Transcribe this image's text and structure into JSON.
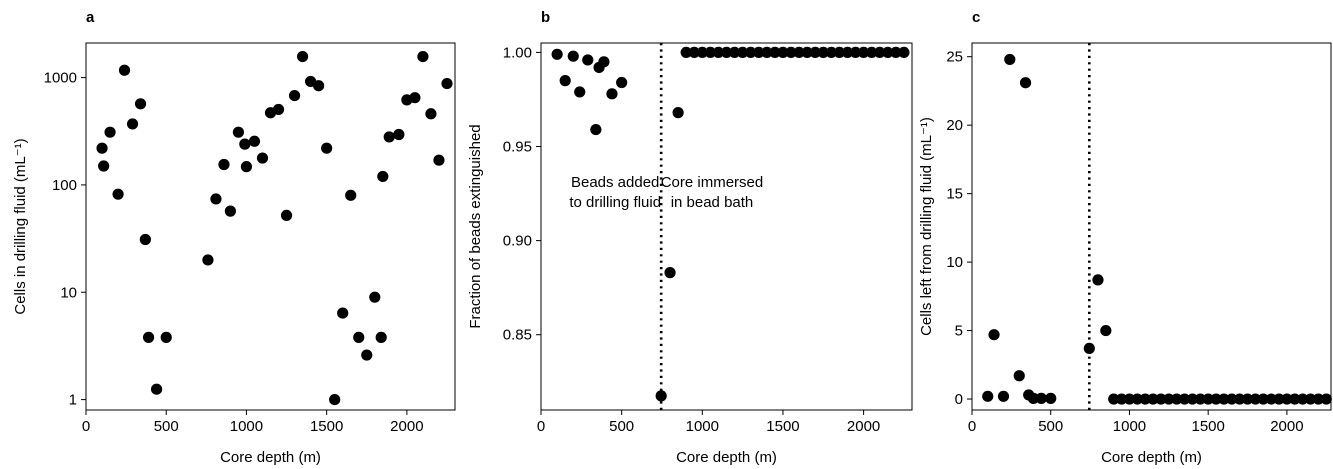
{
  "chart_data": [
    {
      "type": "scatter",
      "panel_label": "a",
      "xlabel": "Core depth (m)",
      "ylabel": "Cells in drilling fluid (mL⁻¹)",
      "xlim": [
        0,
        2300
      ],
      "ylim": [
        0.8,
        2100
      ],
      "y_scale": "log",
      "x_ticks": [
        0,
        500,
        1000,
        1500,
        2000
      ],
      "y_ticks": [
        1,
        10,
        100,
        1000
      ],
      "grid": false,
      "series": [
        {
          "x": [
            100,
            110,
            150,
            200,
            240,
            290,
            340,
            370,
            390,
            440,
            500,
            760,
            810,
            860,
            900,
            950,
            990,
            1000,
            1050,
            1100,
            1150,
            1200,
            1250,
            1300,
            1350,
            1400,
            1450,
            1500,
            1550,
            1600,
            1650,
            1700,
            1750,
            1800,
            1840,
            1850,
            1890,
            1950,
            2000,
            2050,
            2100,
            2150,
            2200,
            2250
          ],
          "y": [
            220,
            150,
            310,
            82,
            1170,
            370,
            570,
            31,
            3.8,
            1.25,
            3.8,
            20,
            74,
            155,
            57,
            310,
            240,
            148,
            255,
            178,
            470,
            505,
            52,
            680,
            1570,
            920,
            840,
            220,
            1.0,
            6.4,
            80,
            3.8,
            2.6,
            9,
            3.8,
            120,
            280,
            295,
            620,
            650,
            1570,
            460,
            170,
            880
          ]
        }
      ]
    },
    {
      "type": "scatter",
      "panel_label": "b",
      "xlabel": "Core depth (m)",
      "ylabel": "Fraction of beads extinguished",
      "xlim": [
        0,
        2300
      ],
      "ylim": [
        0.81,
        1.005
      ],
      "x_ticks": [
        0,
        500,
        1000,
        1500,
        2000
      ],
      "y_ticks": [
        0.85,
        0.9,
        0.95,
        1.0
      ],
      "y_tick_labels": [
        "0.85",
        "0.90",
        "0.95",
        "1.00"
      ],
      "grid": false,
      "vline_x": 745,
      "annotations": [
        {
          "lines": [
            "Beads added",
            "to drilling fluid"
          ],
          "x": 460,
          "y": 0.9285,
          "anchor": "middle"
        },
        {
          "lines": [
            "Core immersed",
            "in bead bath"
          ],
          "x": 1060,
          "y": 0.9285,
          "anchor": "middle"
        }
      ],
      "series": [
        {
          "x": [
            100,
            150,
            200,
            240,
            290,
            340,
            360,
            390,
            440,
            500,
            745,
            800,
            850,
            900,
            950,
            1000,
            1050,
            1100,
            1150,
            1200,
            1250,
            1300,
            1350,
            1400,
            1450,
            1500,
            1550,
            1600,
            1650,
            1700,
            1750,
            1800,
            1850,
            1900,
            1950,
            2000,
            2050,
            2100,
            2150,
            2200,
            2250
          ],
          "y": [
            0.999,
            0.985,
            0.998,
            0.979,
            0.996,
            0.959,
            0.992,
            0.995,
            0.978,
            0.984,
            0.8175,
            0.883,
            0.968,
            1.0,
            1.0,
            1.0,
            1.0,
            1.0,
            1.0,
            1.0,
            1.0,
            1.0,
            1.0,
            1.0,
            1.0,
            1.0,
            1.0,
            1.0,
            1.0,
            1.0,
            1.0,
            1.0,
            1.0,
            1.0,
            1.0,
            1.0,
            1.0,
            1.0,
            1.0,
            1.0,
            1.0
          ]
        }
      ]
    },
    {
      "type": "scatter",
      "panel_label": "c",
      "xlabel": "Core depth (m)",
      "ylabel": "Cells left from drilling fluid (mL⁻¹)",
      "xlim": [
        0,
        2280
      ],
      "ylim": [
        -0.8,
        26
      ],
      "x_ticks": [
        0,
        500,
        1000,
        1500,
        2000
      ],
      "y_ticks": [
        0,
        5,
        10,
        15,
        20,
        25
      ],
      "grid": false,
      "vline_x": 745,
      "series": [
        {
          "x": [
            100,
            140,
            200,
            240,
            300,
            340,
            360,
            390,
            440,
            500,
            745,
            800,
            850,
            900,
            950,
            1000,
            1050,
            1100,
            1150,
            1200,
            1250,
            1300,
            1350,
            1400,
            1450,
            1500,
            1550,
            1600,
            1650,
            1700,
            1750,
            1800,
            1850,
            1900,
            1950,
            2000,
            2050,
            2100,
            2150,
            2200,
            2250
          ],
          "y": [
            0.2,
            4.7,
            0.2,
            24.8,
            1.7,
            23.1,
            0.3,
            0.05,
            0.05,
            0.05,
            3.7,
            8.7,
            5.0,
            0.0,
            0.0,
            0.0,
            0.0,
            0.0,
            0.0,
            0.0,
            0.0,
            0.0,
            0.0,
            0.0,
            0.0,
            0.0,
            0.0,
            0.0,
            0.0,
            0.0,
            0.0,
            0.0,
            0.0,
            0.0,
            0.0,
            0.0,
            0.0,
            0.0,
            0.0,
            0.0,
            0.0
          ]
        }
      ]
    }
  ]
}
